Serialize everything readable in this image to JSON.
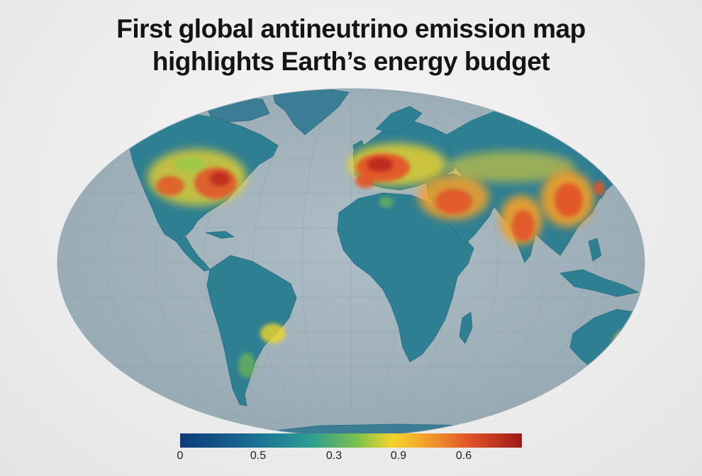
{
  "title": {
    "line1": "First global antineutrino emission map",
    "line2": "highlights Earth’s energy budget"
  },
  "colors": {
    "ocean": "#a3b4bd",
    "land_low": "#2f7f92",
    "mid": "#f2d52a",
    "high": "#e2572a",
    "max": "#a01818"
  },
  "legend": {
    "tick_labels": [
      "0",
      "0.5",
      "0.3",
      "0.9",
      "0.6"
    ]
  }
}
